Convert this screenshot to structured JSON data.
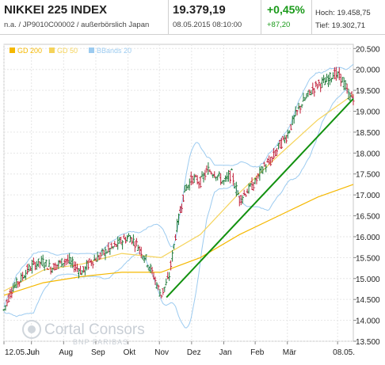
{
  "header": {
    "name": "NIKKEI 225 INDEX",
    "sub": "n.a. / JP9010C00002 / außerbörslich Japan",
    "price": "19.379,19",
    "datetime": "08.05.2015 08:10:00",
    "change_pct": "+0,45%",
    "change_abs": "+87,20",
    "high": "Hoch: 19.458,75",
    "low": "Tief: 19.302,71"
  },
  "legend": [
    {
      "label": "GD 200",
      "color": "#f5b800"
    },
    {
      "label": "GD 50",
      "color": "#f5d35a"
    },
    {
      "label": "BBands 20",
      "color": "#9ccbf0"
    }
  ],
  "watermark": {
    "line1": "Cortal Consors",
    "line2": "BNP PARIBAS"
  },
  "colors": {
    "up": "#1f7a3a",
    "down": "#c0203a",
    "trend": "#12910f",
    "gd200": "#f5b800",
    "gd50": "#f5d35a",
    "bb": "#9ccbf0"
  },
  "chart_data": {
    "type": "candlestick",
    "x_tick_labels": [
      "12.05.Jun",
      "Jul",
      "Aug",
      "Sep",
      "Okt",
      "Nov",
      "Dez",
      "Jan",
      "Feb",
      "Mär",
      "08.05."
    ],
    "y_ticks": [
      13.5,
      14.0,
      14.5,
      15.0,
      15.5,
      16.0,
      16.5,
      17.0,
      17.5,
      18.0,
      18.5,
      19.0,
      19.5,
      20.0,
      20.5
    ],
    "y_tick_labels": [
      "13.500",
      "14.000",
      "14.500",
      "15.000",
      "15.500",
      "16.000",
      "16.500",
      "17.000",
      "17.500",
      "18.000",
      "18.500",
      "19.000",
      "19.500",
      "20.000",
      "20.500"
    ],
    "ylim": [
      13.5,
      20.6
    ],
    "y_unit": "thousands",
    "close_path": [
      [
        0,
        14.25
      ],
      [
        10,
        14.75
      ],
      [
        20,
        14.95
      ],
      [
        30,
        15.2
      ],
      [
        40,
        15.35
      ],
      [
        50,
        15.4
      ],
      [
        60,
        15.25
      ],
      [
        70,
        15.35
      ],
      [
        80,
        15.45
      ],
      [
        90,
        15.3
      ],
      [
        100,
        15.15
      ],
      [
        110,
        15.4
      ],
      [
        120,
        15.5
      ],
      [
        130,
        15.65
      ],
      [
        140,
        15.75
      ],
      [
        150,
        15.9
      ],
      [
        160,
        16.0
      ],
      [
        170,
        15.8
      ],
      [
        180,
        15.5
      ],
      [
        190,
        15.1
      ],
      [
        200,
        14.6
      ],
      [
        210,
        15.0
      ],
      [
        220,
        16.2
      ],
      [
        230,
        17.1
      ],
      [
        240,
        17.4
      ],
      [
        250,
        17.3
      ],
      [
        260,
        17.6
      ],
      [
        270,
        17.5
      ],
      [
        280,
        17.3
      ],
      [
        290,
        17.5
      ],
      [
        300,
        16.9
      ],
      [
        310,
        17.1
      ],
      [
        320,
        17.3
      ],
      [
        330,
        17.65
      ],
      [
        340,
        17.8
      ],
      [
        350,
        18.15
      ],
      [
        360,
        18.4
      ],
      [
        370,
        18.85
      ],
      [
        380,
        19.2
      ],
      [
        390,
        19.45
      ],
      [
        400,
        19.65
      ],
      [
        410,
        19.7
      ],
      [
        420,
        19.9
      ],
      [
        430,
        19.8
      ],
      [
        440,
        19.35
      ]
    ],
    "gd200": [
      [
        0,
        14.6
      ],
      [
        50,
        14.9
      ],
      [
        100,
        15.05
      ],
      [
        150,
        15.15
      ],
      [
        200,
        15.15
      ],
      [
        250,
        15.5
      ],
      [
        300,
        16.05
      ],
      [
        350,
        16.5
      ],
      [
        400,
        16.95
      ],
      [
        445,
        17.25
      ]
    ],
    "gd50": [
      [
        0,
        14.7
      ],
      [
        50,
        15.2
      ],
      [
        100,
        15.35
      ],
      [
        150,
        15.6
      ],
      [
        200,
        15.5
      ],
      [
        250,
        16.05
      ],
      [
        300,
        17.05
      ],
      [
        350,
        17.95
      ],
      [
        400,
        18.8
      ],
      [
        445,
        19.4
      ]
    ],
    "trendline": [
      [
        207,
        14.55
      ],
      [
        445,
        19.3
      ]
    ]
  }
}
